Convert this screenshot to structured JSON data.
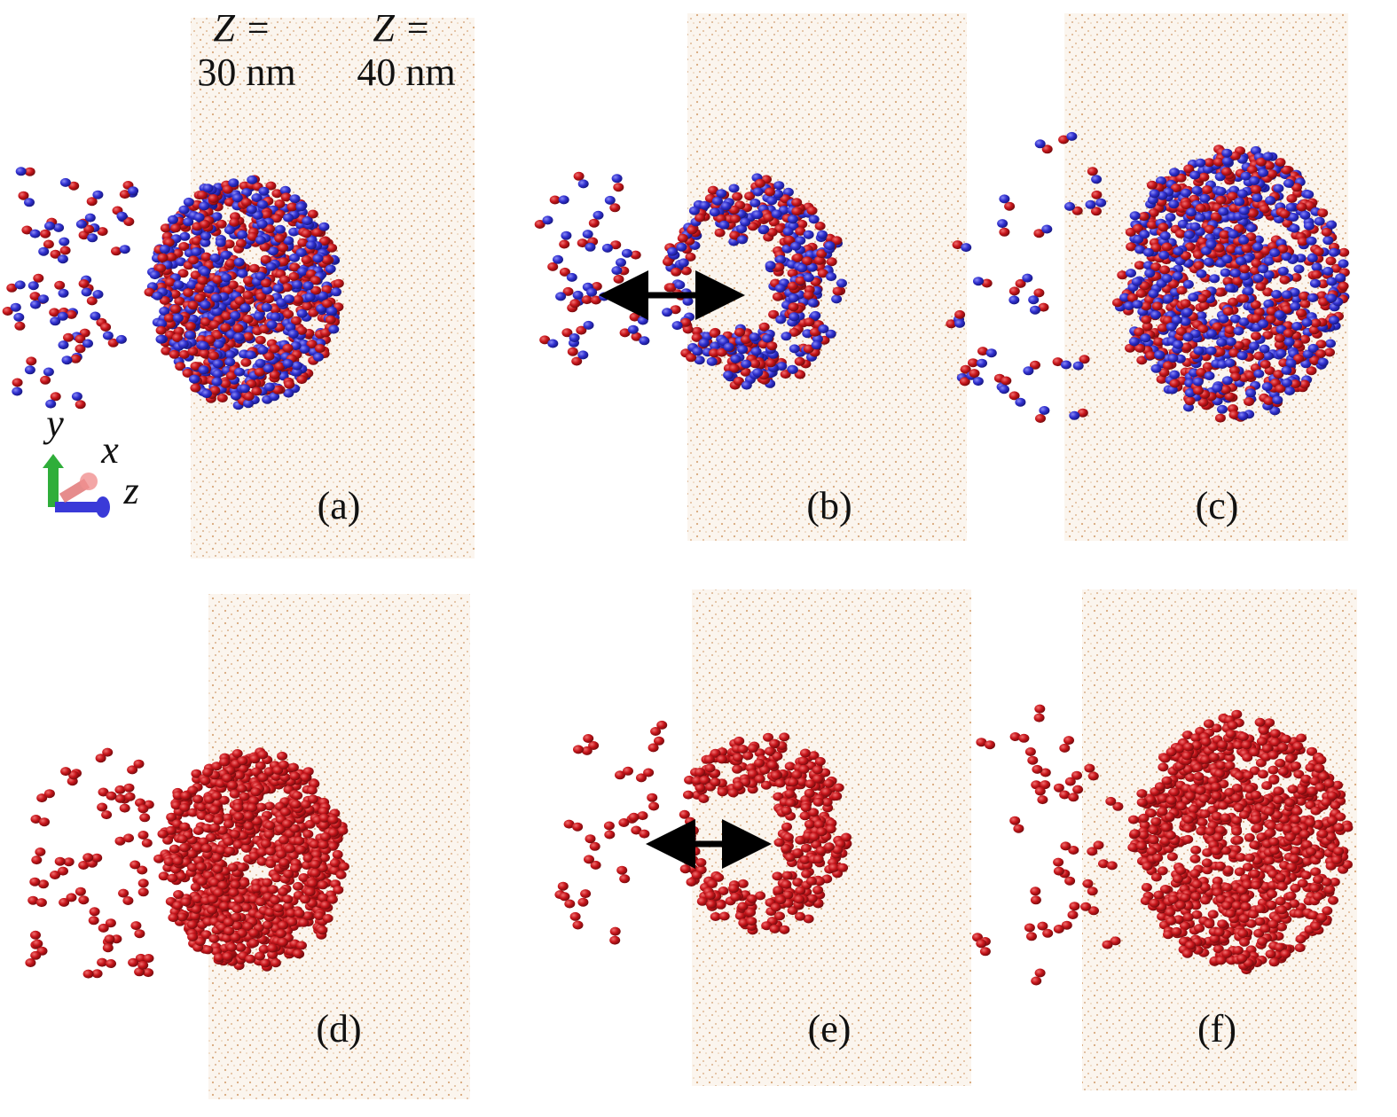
{
  "header": {
    "z1_label": "Z =",
    "z1_value": "30 nm",
    "z2_label": "Z =",
    "z2_value": "40 nm"
  },
  "axes": {
    "y": "y",
    "x": "x",
    "z": "z"
  },
  "panels": [
    {
      "label": "(a)"
    },
    {
      "label": "(b)"
    },
    {
      "label": "(c)"
    },
    {
      "label": "(d)"
    },
    {
      "label": "(e)"
    },
    {
      "label": "(f)"
    }
  ]
}
